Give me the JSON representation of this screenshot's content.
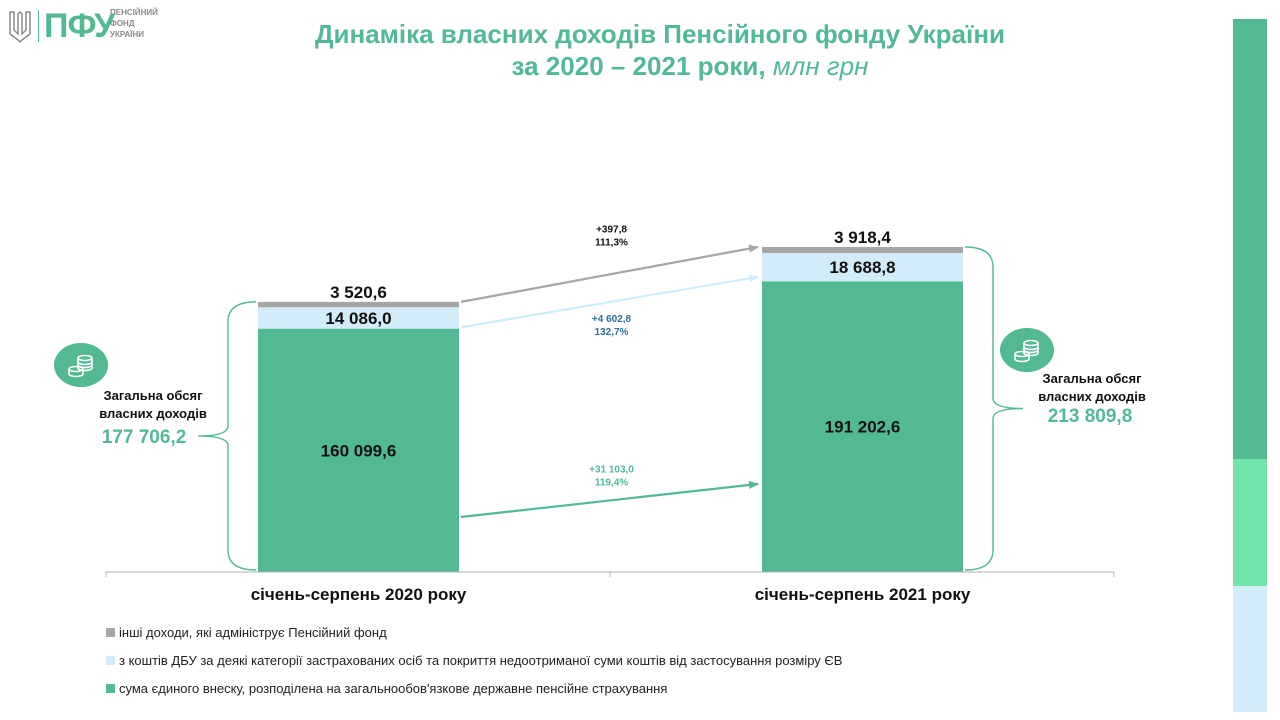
{
  "logo": {
    "mark": "ПФУ",
    "text_lines": [
      "ПЕНСІЙНИЙ",
      "ФОНД",
      "УКРАЇНИ"
    ]
  },
  "title": {
    "line1": "Динаміка власних доходів Пенсійного фонду України",
    "line2": "за 2020 – 2021 роки,",
    "units": " млн грн"
  },
  "colors": {
    "green": "#52b993",
    "light_blue": "#d2edf9",
    "gray": "#a6a6a6",
    "sidebar_mint": "#73e4a9"
  },
  "chart_data": {
    "type": "bar",
    "stacked": true,
    "categories": [
      "січень-серпень 2020 року",
      "січень-серпень 2021 року"
    ],
    "series": [
      {
        "key": "single_contribution",
        "name": "сума єдиного внеску, розподілена на загальнообов'язкове державне пенсійне страхування",
        "color": "#52b993",
        "values": [
          160099.6,
          191202.6
        ],
        "labels": [
          "160 099,6",
          "191 202,6"
        ]
      },
      {
        "key": "state_budget",
        "name": "з коштів ДБУ за деякі категорії застрахованих осіб та покриття недоотриманої суми коштів від застосування розміру ЄВ",
        "color": "#d2edf9",
        "values": [
          14086.0,
          18688.8
        ],
        "labels": [
          "14 086,0",
          "18 688,8"
        ]
      },
      {
        "key": "other",
        "name": "інші доходи, які адмініструє Пенсійний фонд",
        "color": "#a6a6a6",
        "values": [
          3520.6,
          3918.4
        ],
        "labels": [
          "3 520,6",
          "3 918,4"
        ]
      }
    ],
    "changes": [
      {
        "series": "other",
        "delta": "+397,8",
        "pct": "111,3%",
        "color": "#a6a6a6",
        "text_color": "#111111"
      },
      {
        "series": "state_budget",
        "delta": "+4 602,8",
        "pct": "132,7%",
        "color": "#d2edf9",
        "text_color": "#2e6f9e"
      },
      {
        "series": "single_contribution",
        "delta": "+31 103,0",
        "pct": "119,4%",
        "color": "#52b993",
        "text_color": "#52b993"
      }
    ],
    "totals": {
      "caption": "Загальна обсяг власних доходів",
      "values": [
        "177 706,2",
        "213 809,8"
      ]
    }
  },
  "legend": {
    "items": [
      {
        "label": "інші доходи, які адмініструє Пенсійний фонд",
        "color": "#a6a6a6"
      },
      {
        "label": "з коштів ДБУ за деякі категорії застрахованих осіб та покриття недоотриманої суми коштів від застосування розміру ЄВ",
        "color": "#d2edf9"
      },
      {
        "label": "сума єдиного внеску, розподілена на загальнообов'язкове державне пенсійне страхування",
        "color": "#52b993"
      }
    ]
  }
}
